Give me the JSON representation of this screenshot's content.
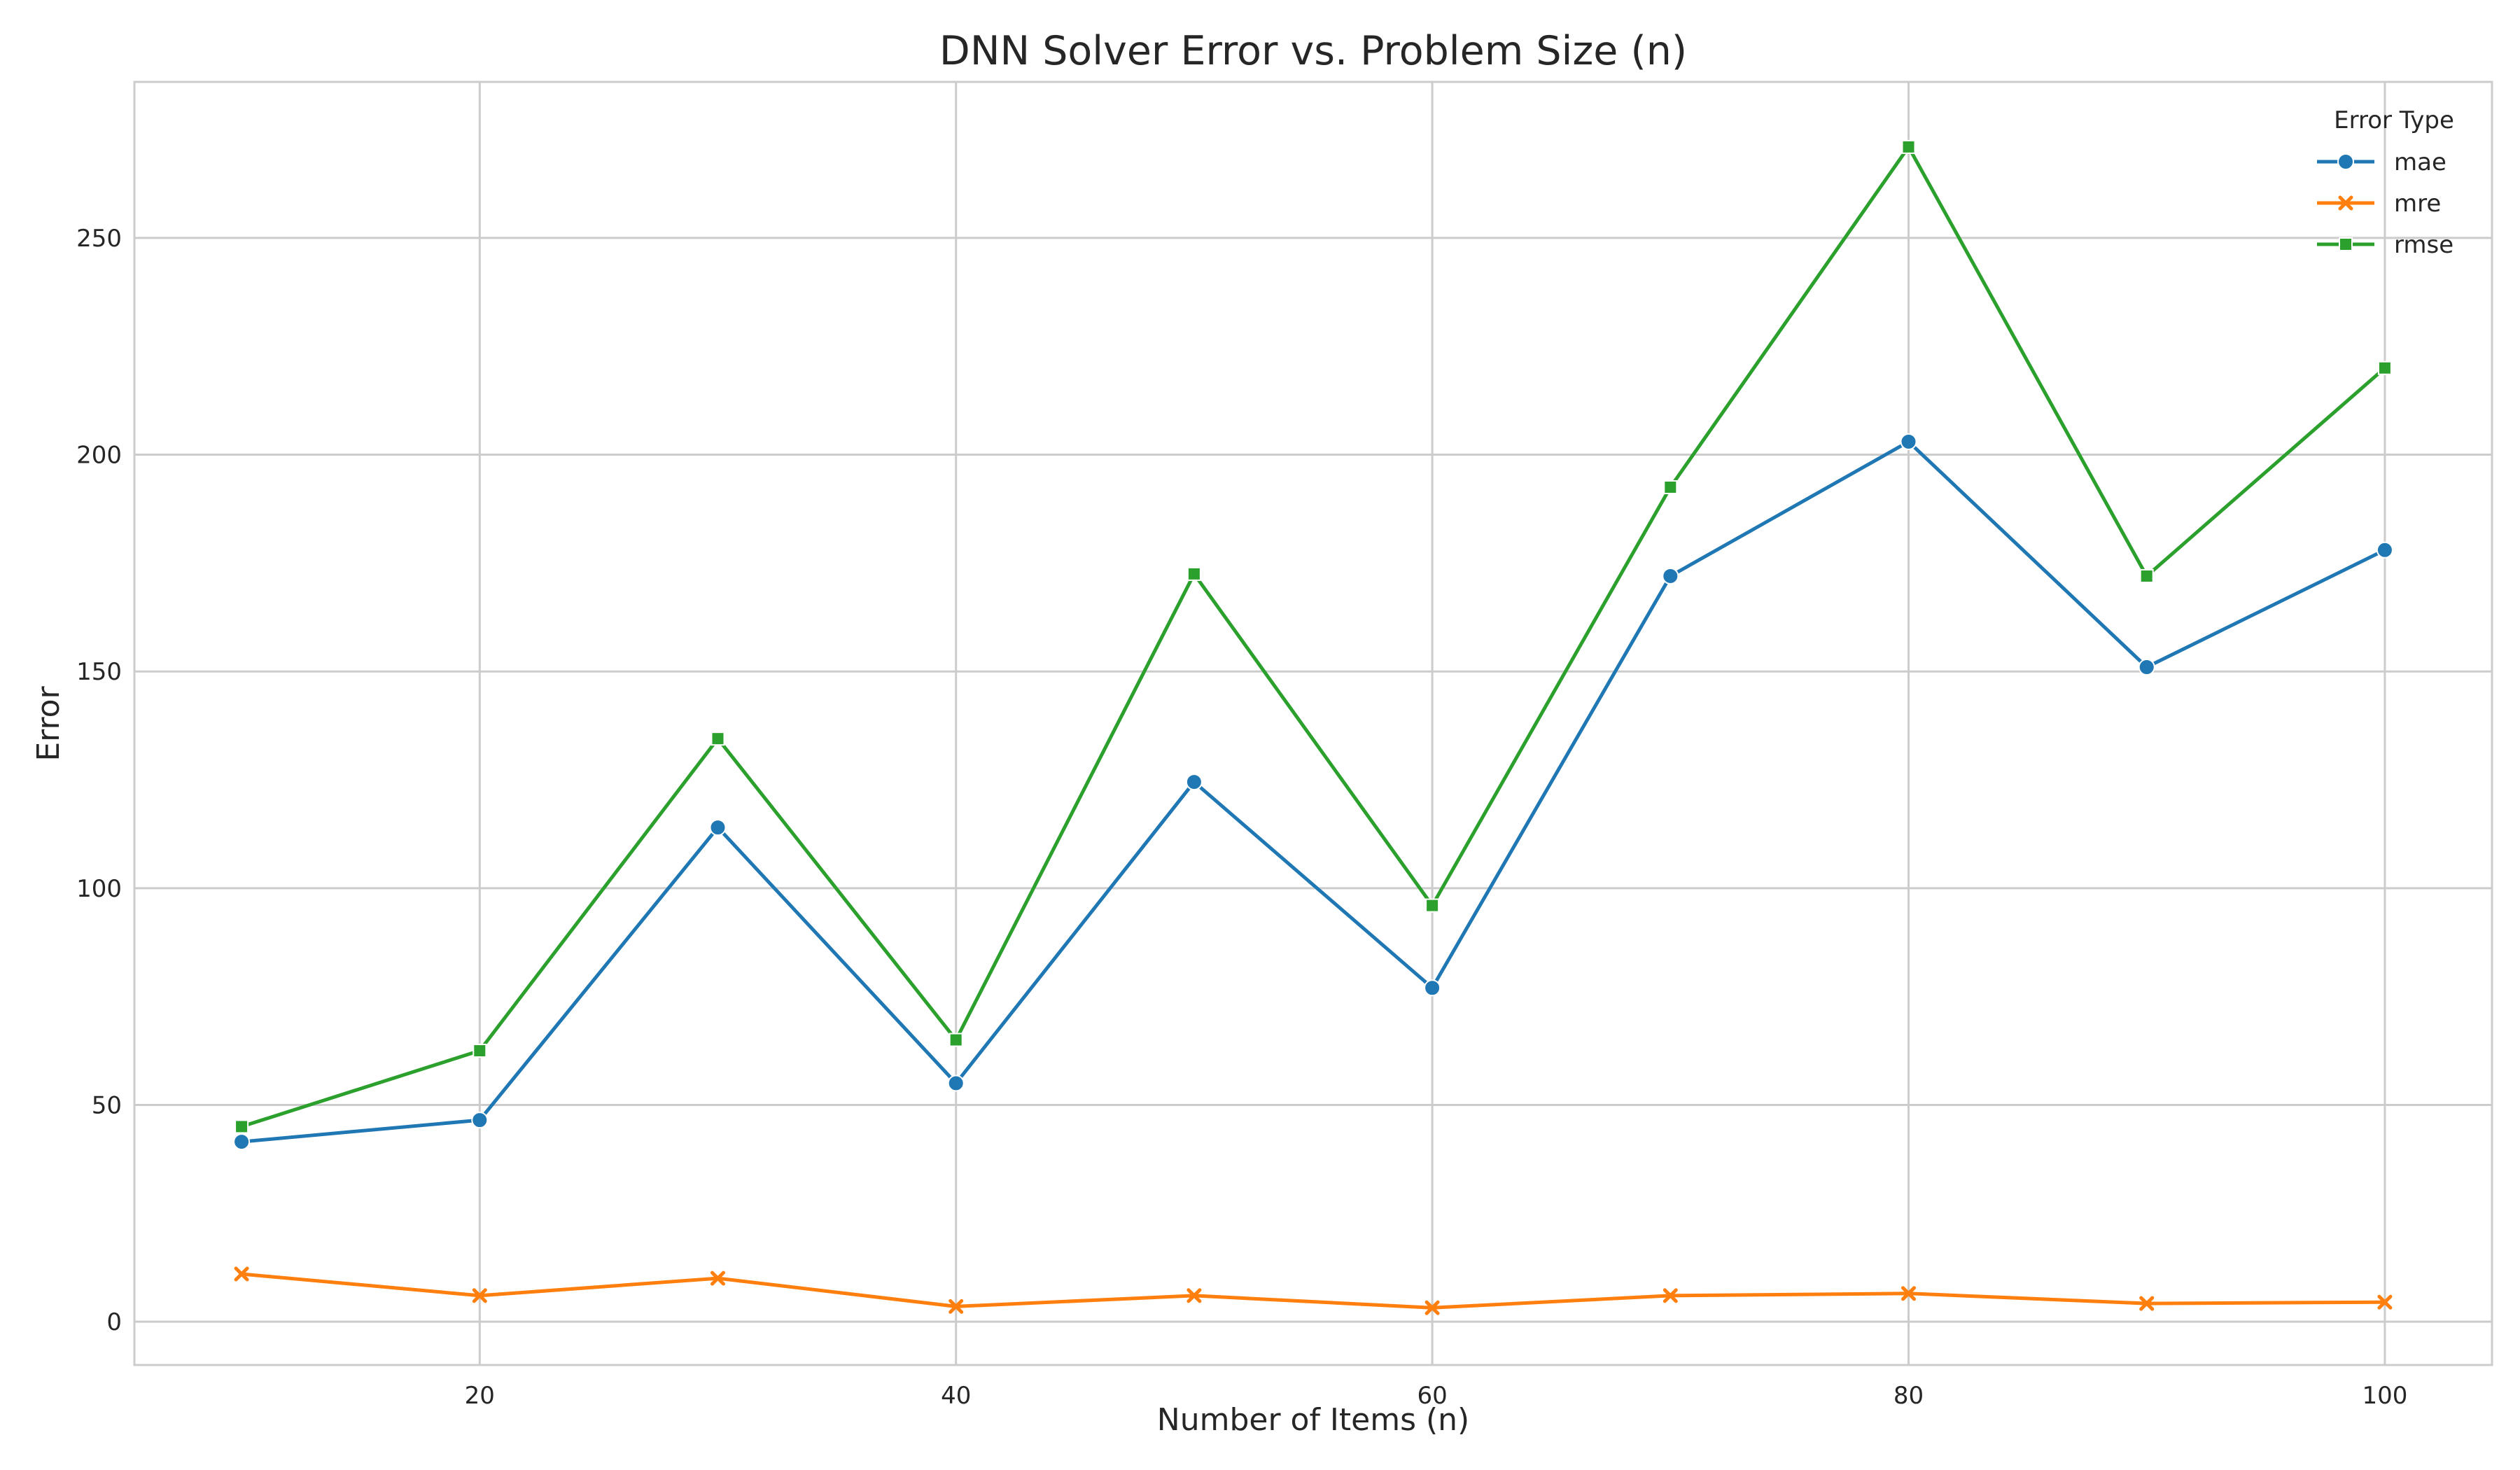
{
  "chart_data": {
    "type": "line",
    "title": "DNN Solver Error vs. Problem Size (n)",
    "xlabel": "Number of Items (n)",
    "ylabel": "Error",
    "xlim": [
      5.5,
      104.5
    ],
    "ylim": [
      -10,
      286
    ],
    "xticks": [
      20,
      40,
      60,
      80,
      100
    ],
    "yticks": [
      0,
      50,
      100,
      150,
      200,
      250
    ],
    "grid": true,
    "legend": {
      "title": "Error Type",
      "placement": "top-right"
    },
    "x": [
      10,
      20,
      30,
      40,
      50,
      60,
      70,
      80,
      90,
      100
    ],
    "series": [
      {
        "name": "mae",
        "color": "#1f77b4",
        "marker": "circle",
        "values": [
          41.5,
          46.5,
          114,
          55,
          124.5,
          77,
          172,
          203,
          151,
          178
        ]
      },
      {
        "name": "mre",
        "color": "#ff7f0e",
        "marker": "x",
        "values": [
          11,
          6,
          10,
          3.5,
          6,
          3.2,
          6,
          6.5,
          4.2,
          4.5
        ]
      },
      {
        "name": "rmse",
        "color": "#2ca02c",
        "marker": "square",
        "values": [
          45,
          62.5,
          134.5,
          65,
          172.5,
          96,
          192.5,
          271,
          172,
          220
        ]
      }
    ]
  }
}
